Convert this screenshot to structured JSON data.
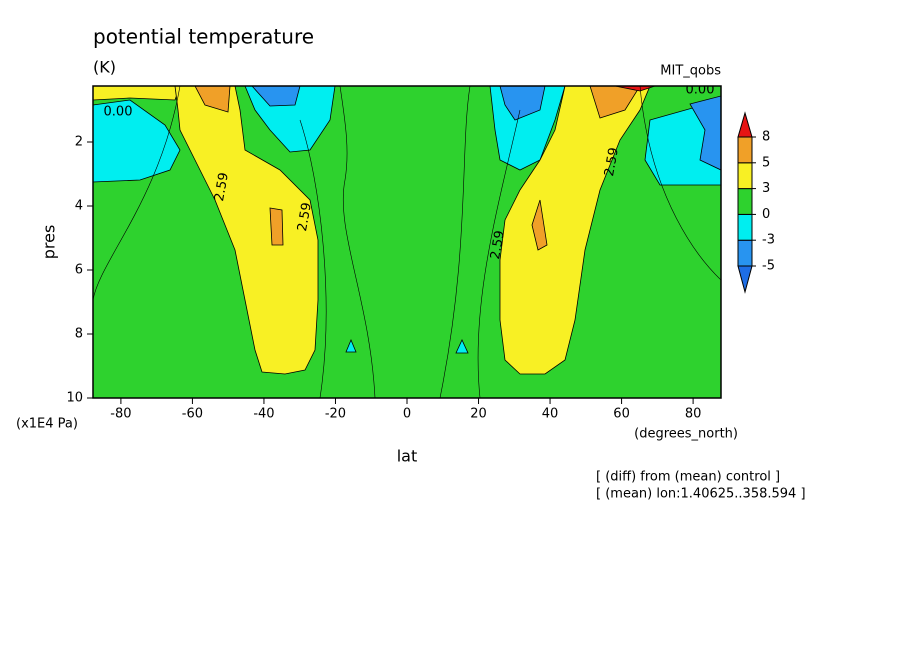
{
  "chart_data": {
    "type": "contour",
    "title": "potential temperature",
    "subtitle": "(K)",
    "source": "MIT_qobs",
    "xlabel": "lat",
    "ylabel": "pres",
    "xunit": "(degrees_north)",
    "yunit": "(x1E4 Pa)",
    "notes": [
      "[ (diff) from (mean) control ]",
      "[ (mean) lon:1.40625..358.594 ]"
    ],
    "xlim": [
      -87.8,
      87.8
    ],
    "xticks": [
      -80,
      -60,
      -40,
      -20,
      0,
      20,
      40,
      60,
      80
    ],
    "ylim": [
      10,
      0.25
    ],
    "yticks": [
      2,
      4,
      6,
      8,
      10
    ],
    "colorbar": {
      "levels": [
        -5,
        -3,
        0,
        3,
        5,
        8
      ],
      "colors": [
        "#1e6ee6",
        "#2894f0",
        "#00eef0",
        "#2ed22e",
        "#f8f024",
        "#f0a028",
        "#e61414"
      ]
    },
    "contour_labels": [
      {
        "value": 0,
        "label": "0.00"
      },
      {
        "value": 0,
        "label": "0.00"
      },
      {
        "value": 2.59,
        "label": "2.59"
      },
      {
        "value": 2.59,
        "label": "2.59"
      },
      {
        "value": 2.59,
        "label": "2.59"
      },
      {
        "value": 2.59,
        "label": "2.59"
      }
    ]
  }
}
